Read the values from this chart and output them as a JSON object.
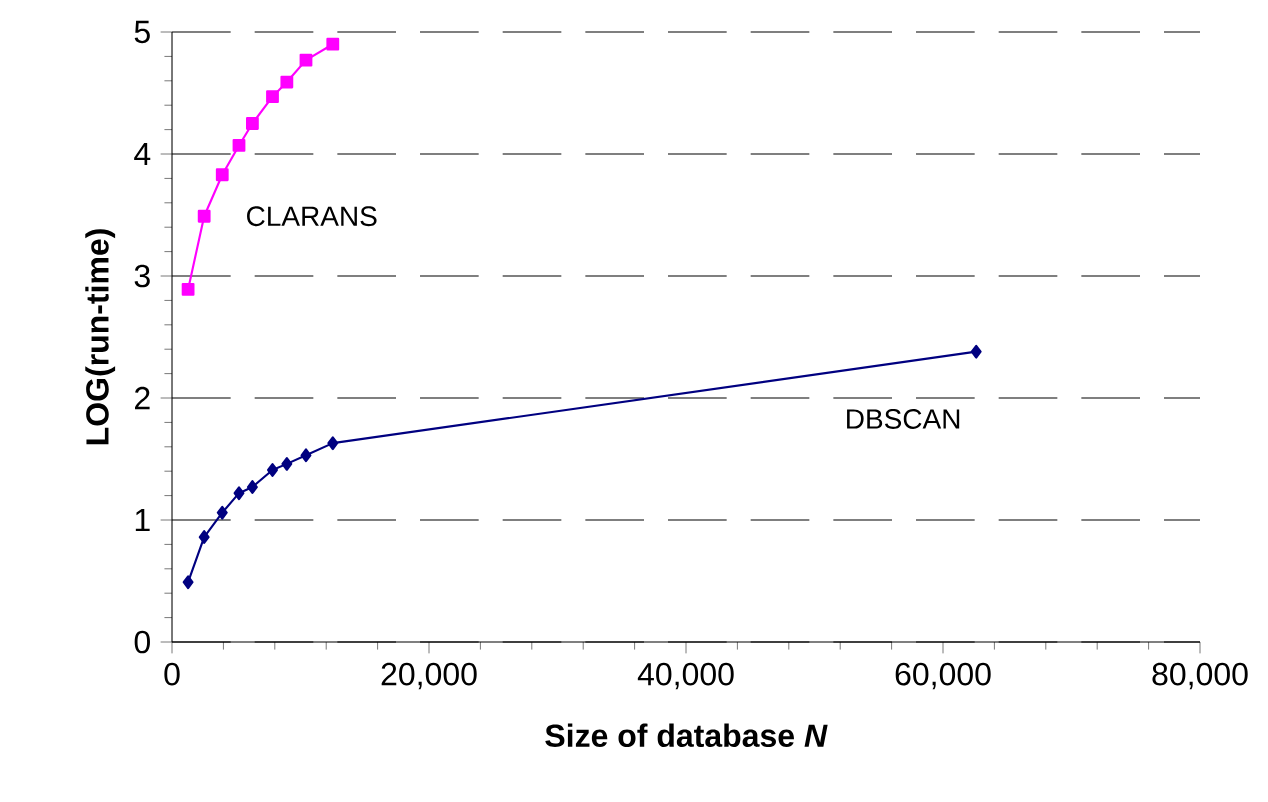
{
  "chart_data": {
    "type": "line",
    "xlabel": "Size of database *N*",
    "ylabel": "LOG(run-time)",
    "xlim": [
      0,
      80000
    ],
    "ylim": [
      0,
      5
    ],
    "xticks": [
      0,
      {
        "value": 20000,
        "label": "20,000"
      },
      {
        "value": 40000,
        "label": "40,000"
      },
      {
        "value": 60000,
        "label": "60,000"
      },
      {
        "value": 80000,
        "label": "80,000"
      }
    ],
    "yticks": [
      0,
      1,
      2,
      3,
      4,
      5
    ],
    "grid": "y",
    "series": [
      {
        "name": "CLARANS",
        "color": "#ff00ff",
        "marker": "square",
        "x": [
          1252,
          2503,
          3910,
          5213,
          6256,
          7820,
          8937,
          10426,
          12512
        ],
        "values": [
          2.89,
          3.49,
          3.83,
          4.07,
          4.25,
          4.47,
          4.59,
          4.77,
          4.9
        ]
      },
      {
        "name": "DBSCAN",
        "color": "#000080",
        "marker": "diamond",
        "x": [
          1252,
          2503,
          3910,
          5213,
          6256,
          7820,
          8937,
          10426,
          12512,
          62584
        ],
        "values": [
          0.49,
          0.86,
          1.06,
          1.22,
          1.27,
          1.41,
          1.46,
          1.53,
          1.63,
          2.38
        ]
      }
    ]
  }
}
